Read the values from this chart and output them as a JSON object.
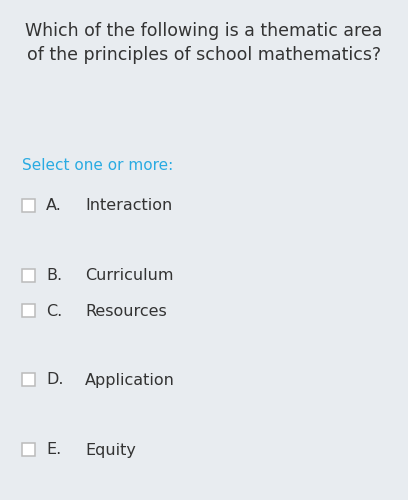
{
  "background_color": "#e8ecf0",
  "title_line1": "Which of the following is a thematic area",
  "title_line2": "of the principles of school mathematics?",
  "title_fontsize": 12.5,
  "title_color": "#333333",
  "select_text": "Select one or more:",
  "select_color": "#29abe2",
  "select_fontsize": 11,
  "options": [
    {
      "label": "A.",
      "text": "Interaction"
    },
    {
      "label": "B.",
      "text": "Curriculum"
    },
    {
      "label": "C.",
      "text": "Resources"
    },
    {
      "label": "D.",
      "text": "Application"
    },
    {
      "label": "E.",
      "text": "Equity"
    }
  ],
  "option_label_fontsize": 11.5,
  "option_text_fontsize": 11.5,
  "option_color": "#333333",
  "checkbox_color": "#ffffff",
  "checkbox_edge_color": "#bbbbbb",
  "fig_width": 4.08,
  "fig_height": 5.0,
  "dpi": 100
}
